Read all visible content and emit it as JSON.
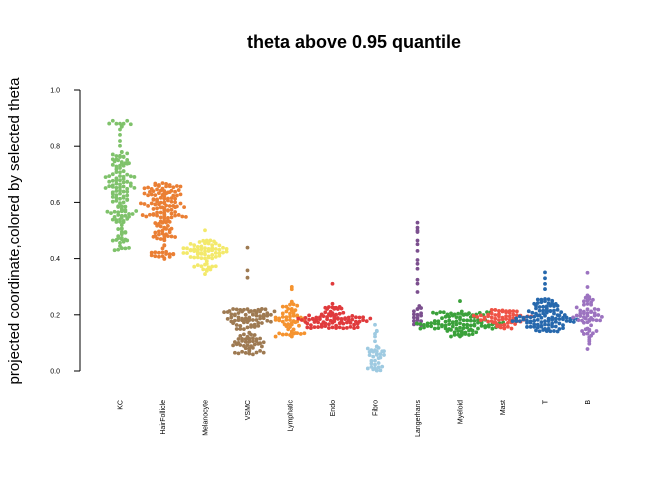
{
  "chart_data": {
    "type": "scatter",
    "subtype": "beeswarm",
    "title": "theta above 0.95 quantile",
    "xlabel": "",
    "ylabel": "projected coordinate,colored by selected theta",
    "ylim": [
      0,
      1
    ],
    "yticks": [
      "0.0",
      "0.2",
      "0.4",
      "0.6",
      "0.8",
      "1.0"
    ],
    "grid": false,
    "legend": "none",
    "categories": [
      "KC",
      "HairFollicle",
      "Melanocyte",
      "VSMC",
      "Lymphatic",
      "Endo",
      "Fibro",
      "Langerhans",
      "Myeloid",
      "Mast",
      "T",
      "B"
    ],
    "series": [
      {
        "category": "KC",
        "color": "#7fc26b",
        "count": 150,
        "min": 0.43,
        "q1": 0.52,
        "median": 0.6,
        "q3": 0.68,
        "max": 0.78,
        "outliers": [
          0.8,
          0.82,
          0.84,
          0.86,
          0.87,
          0.88,
          0.88,
          0.88,
          0.89,
          0.89,
          0.88,
          0.87,
          0.88
        ]
      },
      {
        "category": "HairFollicle",
        "color": "#ea7f34",
        "count": 150,
        "min": 0.4,
        "q1": 0.5,
        "median": 0.57,
        "q3": 0.62,
        "max": 0.67,
        "outliers": []
      },
      {
        "category": "Melanocyte",
        "color": "#f3e96b",
        "count": 70,
        "min": 0.34,
        "q1": 0.4,
        "median": 0.42,
        "q3": 0.44,
        "max": 0.47,
        "outliers": [
          0.5
        ]
      },
      {
        "category": "VSMC",
        "color": "#9e7a52",
        "count": 120,
        "min": 0.06,
        "q1": 0.1,
        "median": 0.17,
        "q3": 0.2,
        "max": 0.22,
        "outliers": [
          0.33,
          0.36,
          0.44
        ]
      },
      {
        "category": "Lymphatic",
        "color": "#f5932f",
        "count": 60,
        "min": 0.12,
        "q1": 0.16,
        "median": 0.19,
        "q3": 0.21,
        "max": 0.25,
        "outliers": [
          0.29,
          0.3
        ]
      },
      {
        "category": "Endo",
        "color": "#e03a3c",
        "count": 90,
        "min": 0.15,
        "q1": 0.17,
        "median": 0.185,
        "q3": 0.2,
        "max": 0.23,
        "outliers": [
          0.24,
          0.31
        ]
      },
      {
        "category": "Fibro",
        "color": "#9ecae1",
        "count": 40,
        "min": 0.0,
        "q1": 0.01,
        "median": 0.04,
        "q3": 0.09,
        "max": 0.17,
        "outliers": []
      },
      {
        "category": "Langerhans",
        "color": "#7b4f8e",
        "count": 30,
        "min": 0.16,
        "q1": 0.19,
        "median": 0.23,
        "q3": 0.45,
        "max": 0.53,
        "outliers": []
      },
      {
        "category": "Myeloid",
        "color": "#3aa13a",
        "count": 110,
        "min": 0.12,
        "q1": 0.15,
        "median": 0.165,
        "q3": 0.185,
        "max": 0.21,
        "outliers": [
          0.25
        ]
      },
      {
        "category": "Mast",
        "color": "#ef5346",
        "count": 60,
        "min": 0.15,
        "q1": 0.17,
        "median": 0.19,
        "q3": 0.2,
        "max": 0.22,
        "outliers": []
      },
      {
        "category": "T",
        "color": "#2668ad",
        "count": 110,
        "min": 0.14,
        "q1": 0.18,
        "median": 0.2,
        "q3": 0.22,
        "max": 0.26,
        "outliers": [
          0.29,
          0.31,
          0.33,
          0.35
        ]
      },
      {
        "category": "B",
        "color": "#9c73c0",
        "count": 60,
        "min": 0.07,
        "q1": 0.17,
        "median": 0.19,
        "q3": 0.22,
        "max": 0.27,
        "outliers": [
          0.3,
          0.35
        ]
      }
    ]
  }
}
